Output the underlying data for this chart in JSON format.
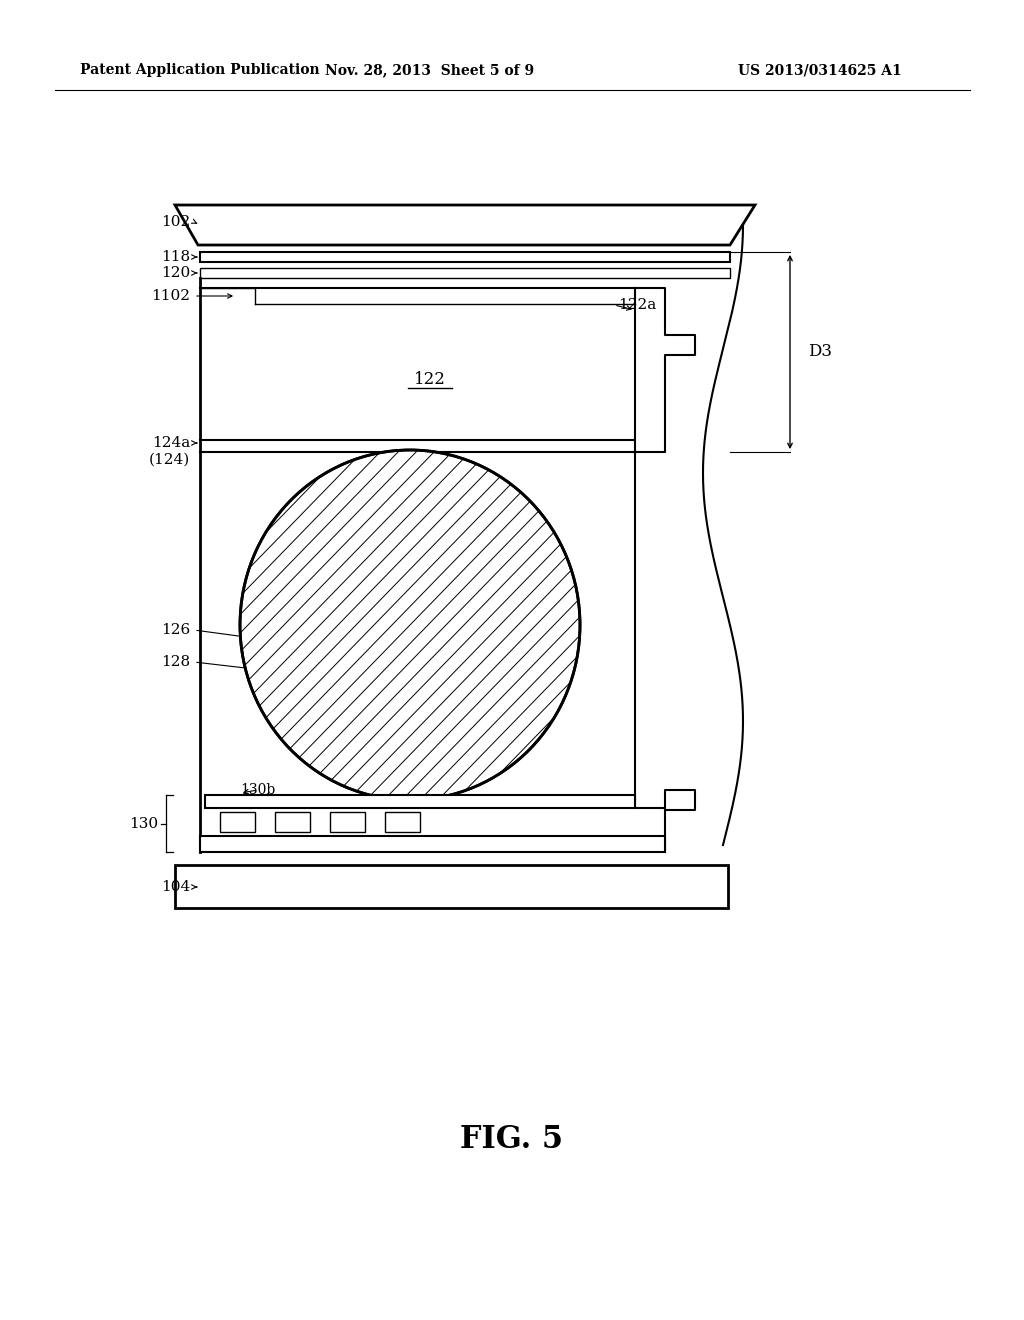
{
  "bg_color": "#ffffff",
  "line_color": "#000000",
  "fig_label": "FIG. 5",
  "header_left": "Patent Application Publication",
  "header_mid": "Nov. 28, 2013  Sheet 5 of 9",
  "header_right": "US 2013/0314625 A1",
  "lw_thin": 1.0,
  "lw_mid": 1.5,
  "lw_thick": 2.0
}
